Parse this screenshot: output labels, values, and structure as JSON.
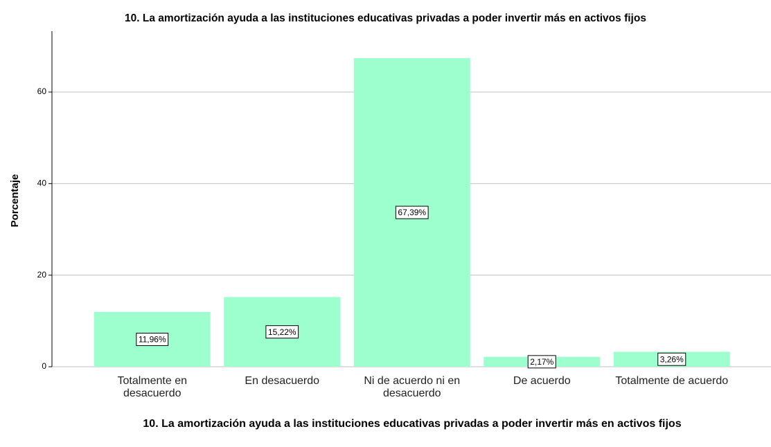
{
  "chart_data": {
    "type": "bar",
    "title": "10. La amortización ayuda a las instituciones educativas privadas a poder invertir más en activos fijos",
    "x_label": "10. La amortización ayuda a las instituciones educativas privadas a poder invertir más en activos fijos",
    "y_label": "Porcentaje",
    "categories": [
      "Totalmente en desacuerdo",
      "En desacuerdo",
      "Ni de acuerdo ni en desacuerdo",
      "De acuerdo",
      "Totalmente de acuerdo"
    ],
    "values": [
      11.96,
      15.22,
      67.39,
      2.17,
      3.26
    ],
    "value_labels": [
      "11,96%",
      "15,22%",
      "67,39%",
      "2,17%",
      "3,26%"
    ],
    "color": "#9effce",
    "ylim": [
      0,
      73.3
    ],
    "yticks": [
      0,
      20,
      40,
      60
    ],
    "grid": true
  }
}
